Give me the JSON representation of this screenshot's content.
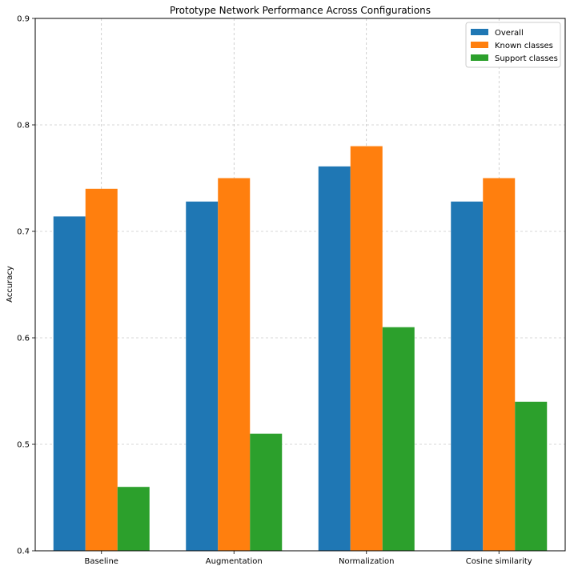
{
  "chart_data": {
    "type": "bar",
    "title": "Prototype Network Performance Across Configurations",
    "xlabel": "",
    "ylabel": "Accuracy",
    "categories": [
      "Baseline",
      "Augmentation",
      "Normalization",
      "Cosine similarity"
    ],
    "series": [
      {
        "name": "Overall",
        "color": "#1f77b4",
        "values": [
          0.714,
          0.728,
          0.761,
          0.728
        ]
      },
      {
        "name": "Known classes",
        "color": "#ff7f0e",
        "values": [
          0.74,
          0.75,
          0.78,
          0.75
        ]
      },
      {
        "name": "Support classes",
        "color": "#2ca02c",
        "values": [
          0.46,
          0.51,
          0.61,
          0.54
        ]
      }
    ],
    "ylim": [
      0.4,
      0.9
    ],
    "yticks": [
      "0.4",
      "0.5",
      "0.6",
      "0.7",
      "0.8",
      "0.9"
    ],
    "grid": true,
    "legend_position": "top-right"
  }
}
